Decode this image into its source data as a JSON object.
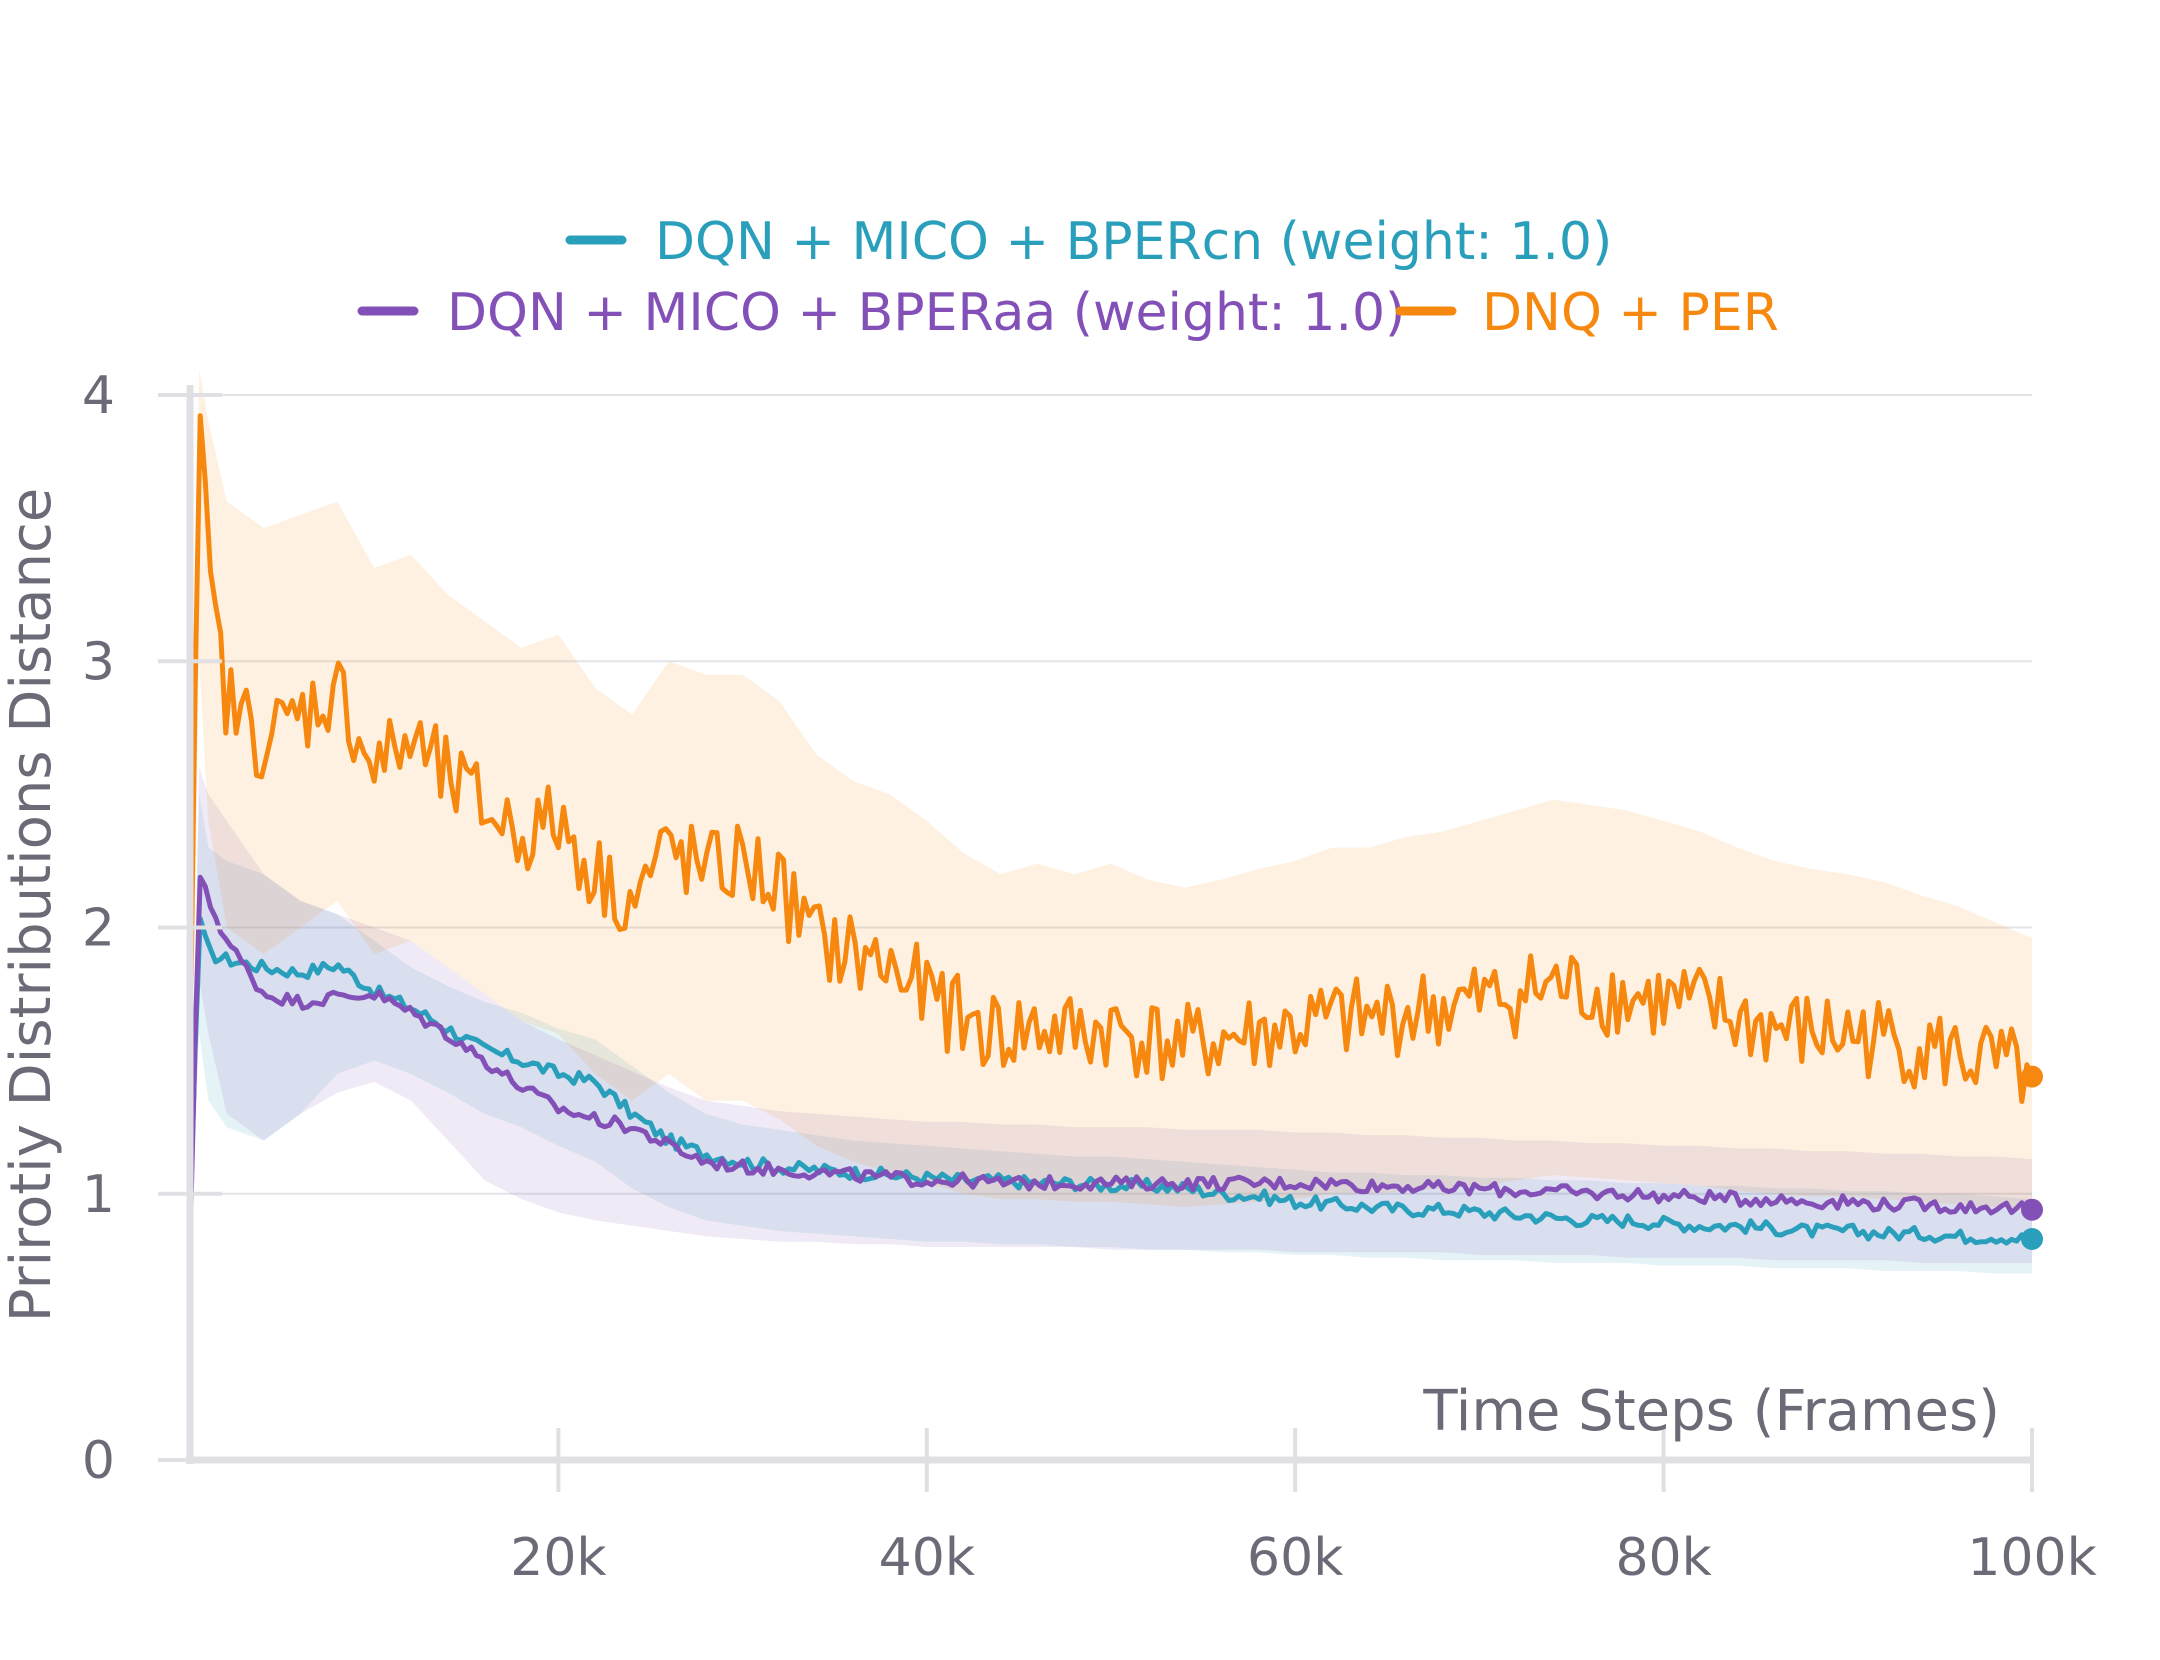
{
  "chart_data": {
    "type": "line",
    "title": "",
    "xlabel": "Time Steps (Frames)",
    "ylabel": "Prirotiy Distributions Distance",
    "xlim": [
      0,
      100000
    ],
    "ylim": [
      0,
      4
    ],
    "x_ticks": [
      20000,
      40000,
      60000,
      80000,
      100000
    ],
    "x_tick_labels": [
      "20k",
      "40k",
      "60k",
      "80k",
      "100k"
    ],
    "y_ticks": [
      0,
      1,
      2,
      3,
      4
    ],
    "y_tick_labels": [
      "0",
      "1",
      "2",
      "3",
      "4"
    ],
    "grid": true,
    "legend_position": "top-center",
    "x": [
      0,
      500,
      1000,
      2000,
      4000,
      6000,
      8000,
      10000,
      12000,
      14000,
      16000,
      18000,
      20000,
      22000,
      24000,
      26000,
      28000,
      30000,
      32000,
      34000,
      36000,
      38000,
      40000,
      42000,
      44000,
      46000,
      48000,
      50000,
      52000,
      54000,
      56000,
      58000,
      60000,
      62000,
      64000,
      66000,
      68000,
      70000,
      72000,
      74000,
      76000,
      78000,
      80000,
      82000,
      84000,
      86000,
      88000,
      90000,
      92000,
      94000,
      96000,
      98000,
      100000
    ],
    "series": [
      {
        "name": "DQN + MICO + BPERcn (weight: 1.0)",
        "color": "#2a9fbc",
        "values": [
          0.9,
          2.05,
          1.9,
          1.88,
          1.85,
          1.83,
          1.86,
          1.76,
          1.7,
          1.62,
          1.54,
          1.5,
          1.45,
          1.42,
          1.3,
          1.2,
          1.15,
          1.12,
          1.1,
          1.09,
          1.08,
          1.07,
          1.06,
          1.05,
          1.05,
          1.04,
          1.04,
          1.03,
          1.03,
          1.02,
          1.0,
          0.99,
          0.97,
          0.96,
          0.95,
          0.94,
          0.94,
          0.93,
          0.92,
          0.91,
          0.9,
          0.9,
          0.89,
          0.88,
          0.88,
          0.87,
          0.86,
          0.86,
          0.85,
          0.85,
          0.84,
          0.84,
          0.83
        ],
        "band_low": [
          0.7,
          1.6,
          1.35,
          1.25,
          1.2,
          1.3,
          1.45,
          1.5,
          1.45,
          1.38,
          1.3,
          1.25,
          1.18,
          1.12,
          1.02,
          0.95,
          0.9,
          0.88,
          0.86,
          0.85,
          0.84,
          0.83,
          0.82,
          0.82,
          0.81,
          0.81,
          0.8,
          0.8,
          0.79,
          0.79,
          0.78,
          0.78,
          0.77,
          0.77,
          0.76,
          0.76,
          0.75,
          0.75,
          0.75,
          0.74,
          0.74,
          0.74,
          0.73,
          0.73,
          0.73,
          0.72,
          0.72,
          0.72,
          0.71,
          0.71,
          0.71,
          0.7,
          0.7
        ],
        "band_high": [
          1.1,
          2.5,
          2.3,
          2.25,
          2.2,
          2.1,
          2.05,
          1.95,
          1.85,
          1.78,
          1.72,
          1.68,
          1.62,
          1.58,
          1.48,
          1.38,
          1.3,
          1.26,
          1.24,
          1.22,
          1.2,
          1.19,
          1.18,
          1.17,
          1.16,
          1.15,
          1.14,
          1.14,
          1.13,
          1.12,
          1.11,
          1.1,
          1.09,
          1.08,
          1.08,
          1.07,
          1.07,
          1.06,
          1.06,
          1.05,
          1.05,
          1.04,
          1.04,
          1.03,
          1.03,
          1.02,
          1.02,
          1.01,
          1.01,
          1.0,
          1.0,
          0.99,
          0.98
        ]
      },
      {
        "name": "DQN + MICO + BPERaa (weight: 1.0)",
        "color": "#8350b8",
        "values": [
          0.8,
          2.2,
          2.1,
          1.95,
          1.75,
          1.72,
          1.74,
          1.75,
          1.68,
          1.6,
          1.5,
          1.4,
          1.32,
          1.28,
          1.25,
          1.18,
          1.12,
          1.1,
          1.09,
          1.08,
          1.07,
          1.06,
          1.05,
          1.05,
          1.04,
          1.04,
          1.04,
          1.04,
          1.04,
          1.04,
          1.04,
          1.04,
          1.04,
          1.04,
          1.03,
          1.03,
          1.02,
          1.02,
          1.01,
          1.01,
          1.0,
          1.0,
          0.99,
          0.99,
          0.98,
          0.98,
          0.97,
          0.97,
          0.96,
          0.96,
          0.95,
          0.95,
          0.94
        ],
        "band_low": [
          0.6,
          1.8,
          1.6,
          1.3,
          1.2,
          1.3,
          1.38,
          1.42,
          1.35,
          1.2,
          1.05,
          0.98,
          0.93,
          0.9,
          0.88,
          0.86,
          0.84,
          0.83,
          0.82,
          0.82,
          0.81,
          0.81,
          0.8,
          0.8,
          0.8,
          0.8,
          0.8,
          0.79,
          0.79,
          0.79,
          0.79,
          0.79,
          0.78,
          0.78,
          0.78,
          0.78,
          0.78,
          0.77,
          0.77,
          0.77,
          0.77,
          0.76,
          0.76,
          0.76,
          0.76,
          0.75,
          0.75,
          0.75,
          0.75,
          0.74,
          0.74,
          0.74,
          0.74
        ],
        "band_high": [
          1.0,
          2.6,
          2.5,
          2.4,
          2.2,
          2.1,
          2.05,
          2.0,
          1.95,
          1.85,
          1.75,
          1.65,
          1.58,
          1.52,
          1.46,
          1.4,
          1.35,
          1.33,
          1.31,
          1.3,
          1.29,
          1.28,
          1.27,
          1.27,
          1.26,
          1.26,
          1.25,
          1.25,
          1.25,
          1.24,
          1.24,
          1.24,
          1.23,
          1.23,
          1.22,
          1.22,
          1.21,
          1.21,
          1.2,
          1.2,
          1.19,
          1.19,
          1.18,
          1.18,
          1.17,
          1.17,
          1.16,
          1.16,
          1.15,
          1.15,
          1.14,
          1.14,
          1.13
        ]
      },
      {
        "name": "DNQ + PER",
        "color": "#f7880f",
        "values": [
          1.5,
          4.0,
          3.3,
          2.85,
          2.7,
          2.8,
          2.9,
          2.6,
          2.7,
          2.55,
          2.45,
          2.35,
          2.4,
          2.2,
          2.1,
          2.3,
          2.2,
          2.25,
          2.15,
          1.95,
          1.9,
          1.85,
          1.75,
          1.65,
          1.6,
          1.62,
          1.6,
          1.62,
          1.58,
          1.55,
          1.58,
          1.6,
          1.62,
          1.65,
          1.65,
          1.68,
          1.7,
          1.72,
          1.75,
          1.78,
          1.76,
          1.74,
          1.72,
          1.7,
          1.65,
          1.62,
          1.6,
          1.6,
          1.58,
          1.55,
          1.52,
          1.48,
          1.44
        ],
        "band_low": [
          1.0,
          3.0,
          2.4,
          2.0,
          1.9,
          2.0,
          2.1,
          1.9,
          1.95,
          1.85,
          1.75,
          1.65,
          1.6,
          1.45,
          1.35,
          1.45,
          1.35,
          1.35,
          1.28,
          1.18,
          1.12,
          1.08,
          1.04,
          1.0,
          0.98,
          0.98,
          0.97,
          0.97,
          0.96,
          0.95,
          0.96,
          0.97,
          0.98,
          1.0,
          1.0,
          1.01,
          1.02,
          1.03,
          1.05,
          1.07,
          1.06,
          1.05,
          1.04,
          1.03,
          1.01,
          1.0,
          0.99,
          0.99,
          0.98,
          0.97,
          0.96,
          0.95,
          0.94
        ],
        "band_high": [
          2.0,
          4.1,
          3.9,
          3.6,
          3.5,
          3.55,
          3.6,
          3.35,
          3.4,
          3.25,
          3.15,
          3.05,
          3.1,
          2.9,
          2.8,
          3.0,
          2.95,
          2.95,
          2.85,
          2.65,
          2.55,
          2.5,
          2.4,
          2.28,
          2.2,
          2.24,
          2.2,
          2.24,
          2.18,
          2.15,
          2.18,
          2.22,
          2.25,
          2.3,
          2.3,
          2.34,
          2.36,
          2.4,
          2.44,
          2.48,
          2.46,
          2.44,
          2.4,
          2.36,
          2.3,
          2.25,
          2.22,
          2.2,
          2.17,
          2.12,
          2.08,
          2.02,
          1.96
        ]
      }
    ]
  }
}
